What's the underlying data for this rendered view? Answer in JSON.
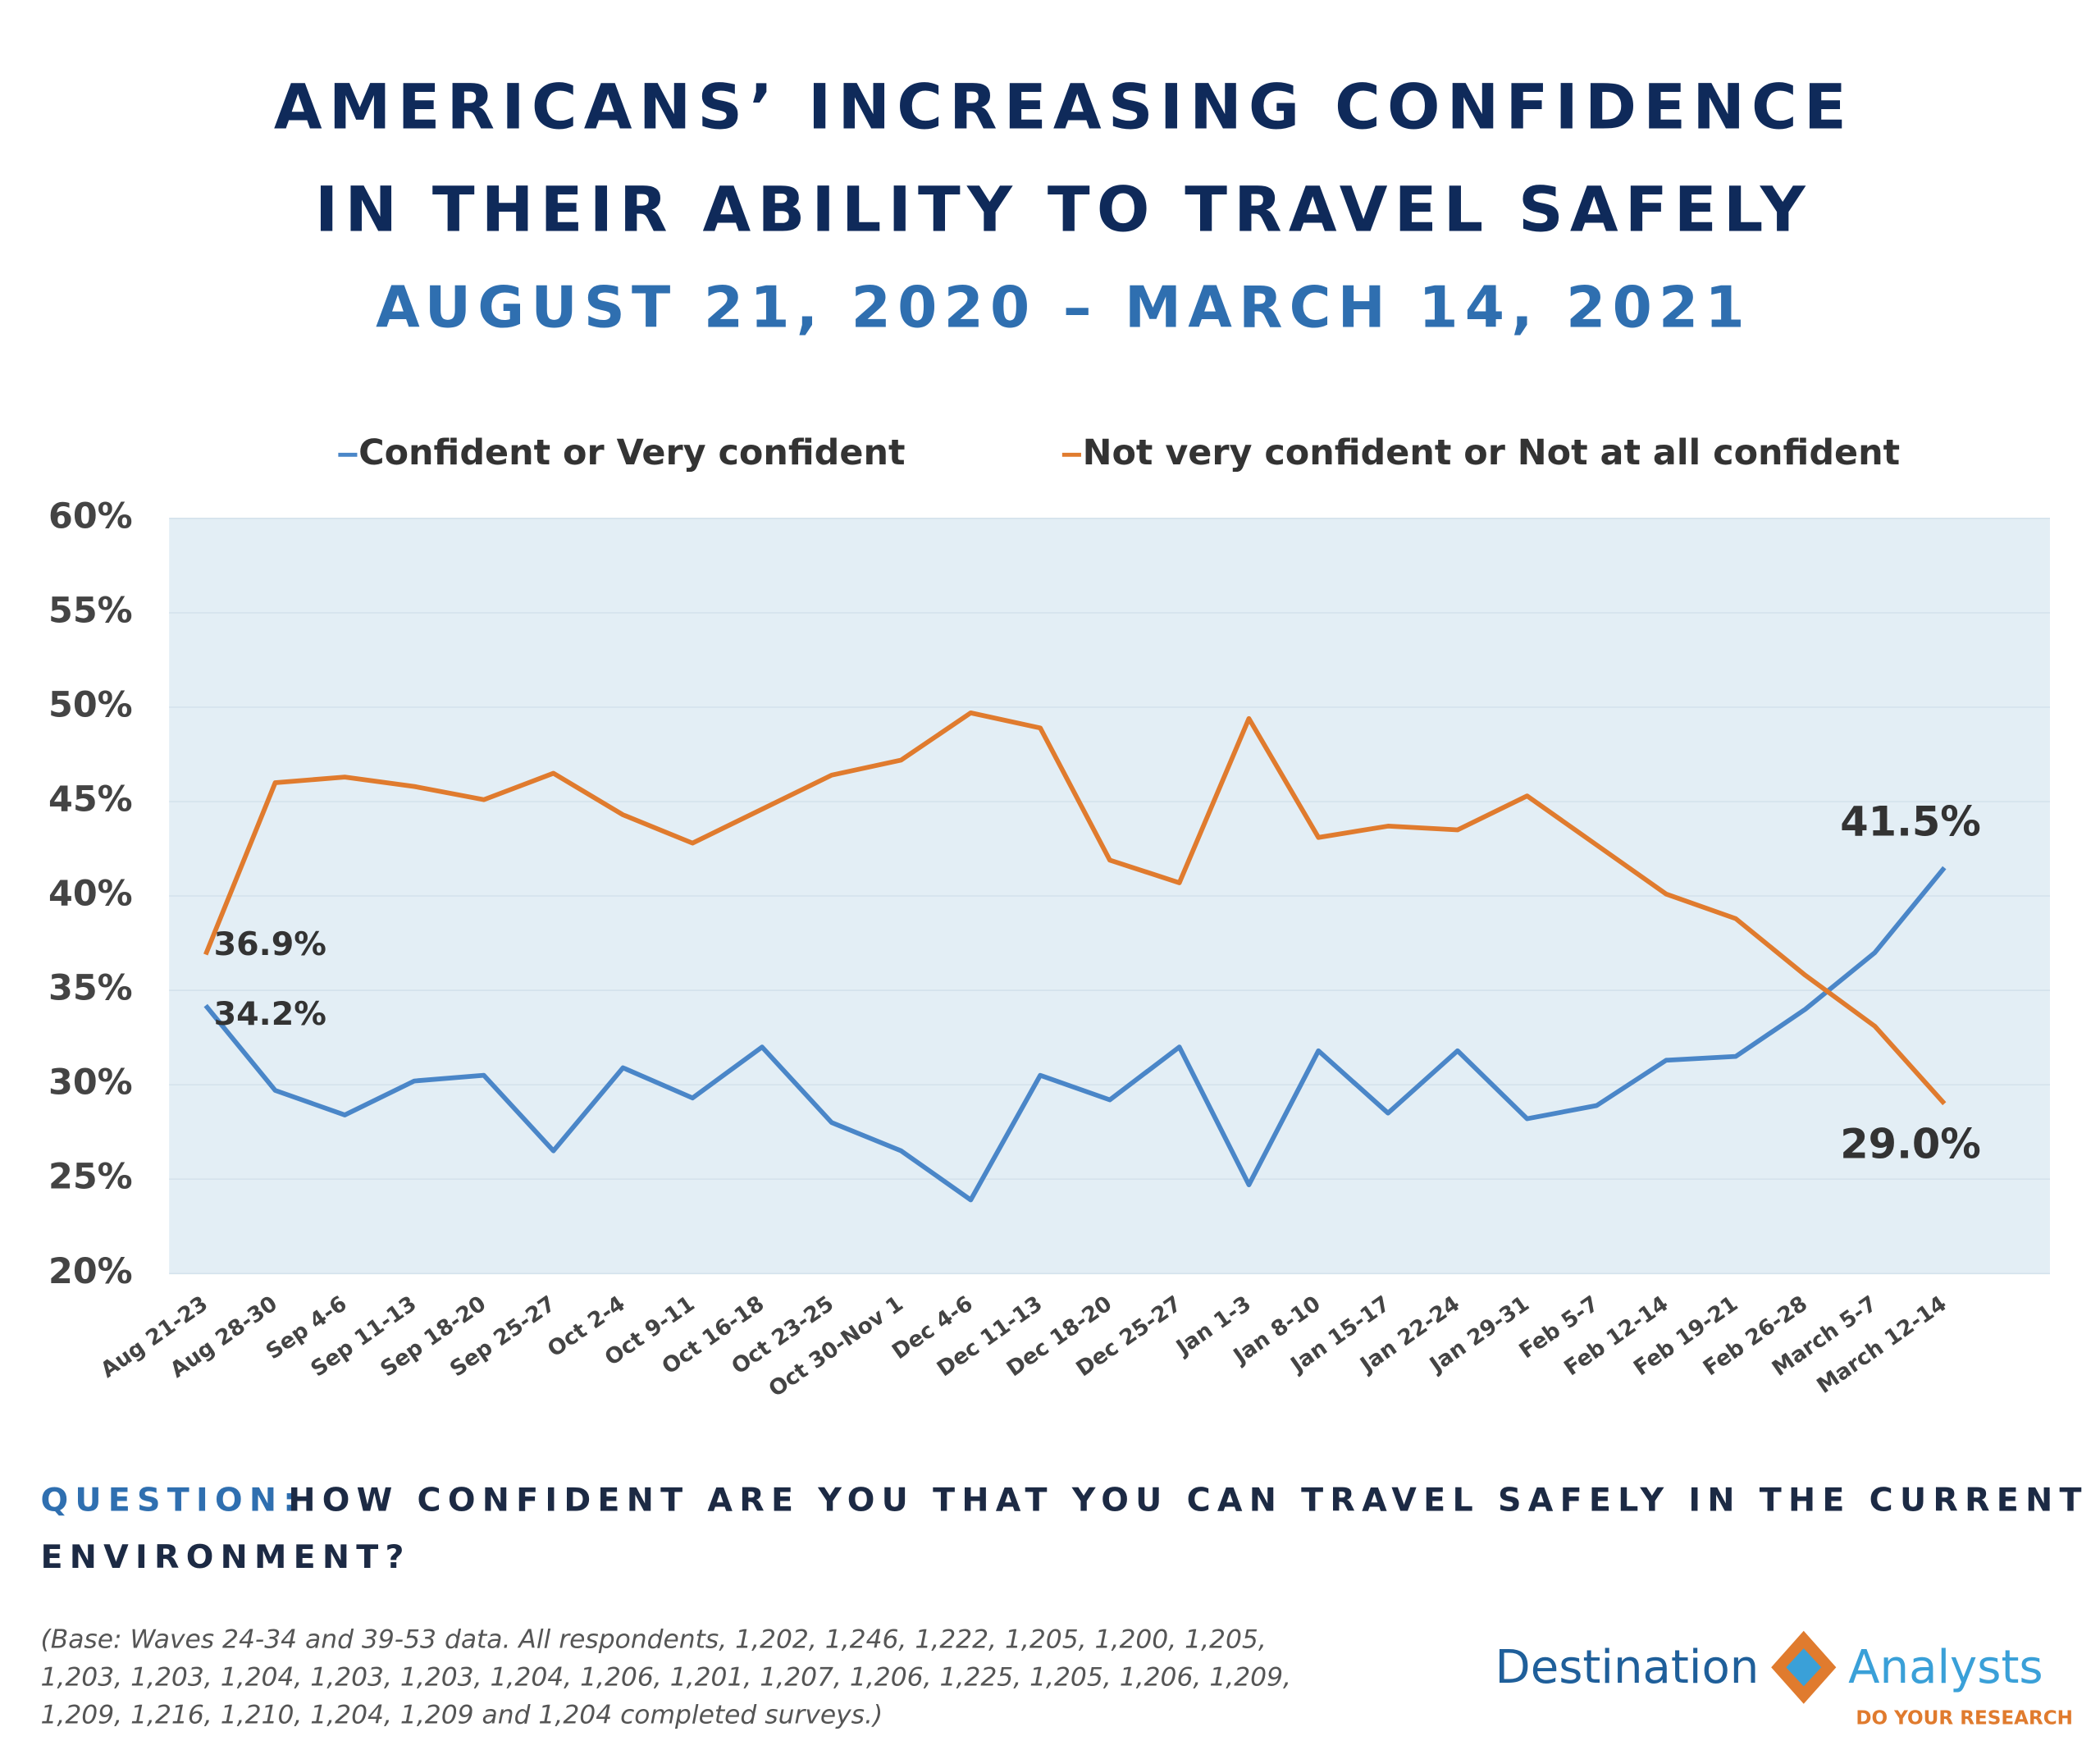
{
  "chart_data": {
    "type": "line",
    "title": [
      "AMERICANS’ INCREASING CONFIDENCE",
      "IN THEIR ABILITY TO TRAVEL SAFELY"
    ],
    "subtitle": "AUGUST 21, 2020 – MARCH 14, 2021",
    "categories": [
      "Aug 21-23",
      "Aug 28-30",
      "Sep 4-6",
      "Sep 11-13",
      "Sep 18-20",
      "Sep 25-27",
      "Oct 2-4",
      "Oct 9-11",
      "Oct 16-18",
      "Oct 23-25",
      "Oct 30-Nov 1",
      "Dec 4-6",
      "Dec 11-13",
      "Dec 18-20",
      "Dec 25-27",
      "Jan 1-3",
      "Jan 8-10",
      "Jan 15-17",
      "Jan 22-24",
      "Jan 29-31",
      "Feb 5-7",
      "Feb 12-14",
      "Feb 19-21",
      "Feb 26-28",
      "March 5-7",
      "March 12-14"
    ],
    "series": [
      {
        "name": "Confident or Very confident",
        "color": "#4a86c8",
        "values": [
          34.2,
          29.7,
          28.4,
          30.2,
          30.5,
          26.5,
          30.9,
          29.3,
          32.0,
          28.0,
          26.5,
          23.9,
          30.5,
          29.2,
          32.0,
          24.7,
          31.8,
          28.5,
          31.8,
          28.2,
          28.9,
          31.3,
          31.5,
          34.0,
          37.0,
          41.5
        ],
        "value_labels": [
          "34.2%",
          null,
          null,
          null,
          null,
          null,
          null,
          null,
          null,
          null,
          null,
          null,
          null,
          null,
          null,
          null,
          null,
          null,
          null,
          null,
          null,
          null,
          null,
          null,
          null,
          "41.5%"
        ]
      },
      {
        "name": "Not very confident or Not at all confident",
        "color": "#e07b2e",
        "values": [
          36.9,
          46.0,
          46.3,
          45.8,
          45.1,
          46.5,
          44.3,
          42.8,
          44.6,
          46.4,
          47.2,
          49.7,
          48.9,
          41.9,
          40.7,
          49.4,
          43.1,
          43.7,
          43.5,
          45.3,
          42.7,
          40.1,
          38.8,
          35.8,
          33.1,
          29.0
        ],
        "value_labels": [
          "36.9%",
          null,
          null,
          null,
          null,
          null,
          null,
          null,
          null,
          null,
          null,
          null,
          null,
          null,
          null,
          null,
          null,
          null,
          null,
          null,
          null,
          null,
          null,
          null,
          null,
          "29.0%"
        ]
      }
    ],
    "ylim": [
      20,
      60
    ],
    "yticks": [
      {
        "value": 20,
        "label": "20%"
      },
      {
        "value": 25,
        "label": "25%"
      },
      {
        "value": 30,
        "label": "30%"
      },
      {
        "value": 35,
        "label": "35%"
      },
      {
        "value": 40,
        "label": "40%"
      },
      {
        "value": 45,
        "label": "45%"
      },
      {
        "value": 50,
        "label": "50%"
      },
      {
        "value": 55,
        "label": "55%"
      },
      {
        "value": 60,
        "label": "60%"
      }
    ],
    "grid": true,
    "legend": "top",
    "question_label": "QUESTION:",
    "question": [
      "HOW CONFIDENT ARE YOU THAT YOU CAN TRAVEL SAFELY IN THE CURRENT",
      "ENVIRONMENT?"
    ],
    "note": [
      "(Base: Waves 24-34 and 39-53 data. All respondents, 1,202, 1,246, 1,222, 1,205, 1,200, 1,205,",
      "1,203, 1,203, 1,204, 1,203, 1,203, 1,204, 1,206, 1,201, 1,207, 1,206, 1,225, 1,205, 1,206, 1,209,",
      "1,209, 1,216, 1,210, 1,204, 1,209 and 1,204 completed surveys.)"
    ],
    "logo": {
      "left": "Destination",
      "right": "Analysts",
      "tagline": "DO YOUR RESEARCH"
    }
  }
}
